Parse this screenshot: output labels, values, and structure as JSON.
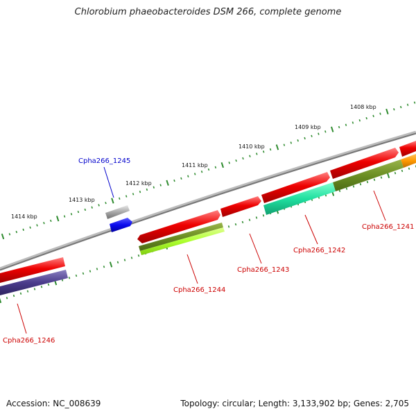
{
  "title": "Chlorobium phaeobacteroides DSM 266, complete genome",
  "footer": {
    "accession": "Accession: NC_008639",
    "stats": "Topology: circular; Length: 3,133,902 bp; Genes: 2,705"
  },
  "scale_labels": [
    "1408 kbp",
    "1409 kbp",
    "1410 kbp",
    "1411 kbp",
    "1412 kbp",
    "1413 kbp",
    "1414 kbp"
  ],
  "genes": [
    {
      "id": "Cpha266_1241",
      "color": "#cc0000"
    },
    {
      "id": "Cpha266_1242",
      "color": "#cc0000"
    },
    {
      "id": "Cpha266_1243",
      "color": "#cc0000"
    },
    {
      "id": "Cpha266_1244",
      "color": "#cc0000"
    },
    {
      "id": "Cpha266_1245",
      "color": "#0000cc"
    },
    {
      "id": "Cpha266_1246",
      "color": "#cc0000"
    }
  ],
  "colors": {
    "backbone": "#888888",
    "cds": "#ee0000",
    "rna_blue": "#0a0aee",
    "grey_feature": "#b0b0b0",
    "cog_olive": "#6b8e23",
    "cog_lime": "#adff2f",
    "cog_teal": "#20e0a0",
    "cog_orange": "#ff9900",
    "cog_navy": "#4b3c8c",
    "tick_green": "#2e8b2e"
  }
}
